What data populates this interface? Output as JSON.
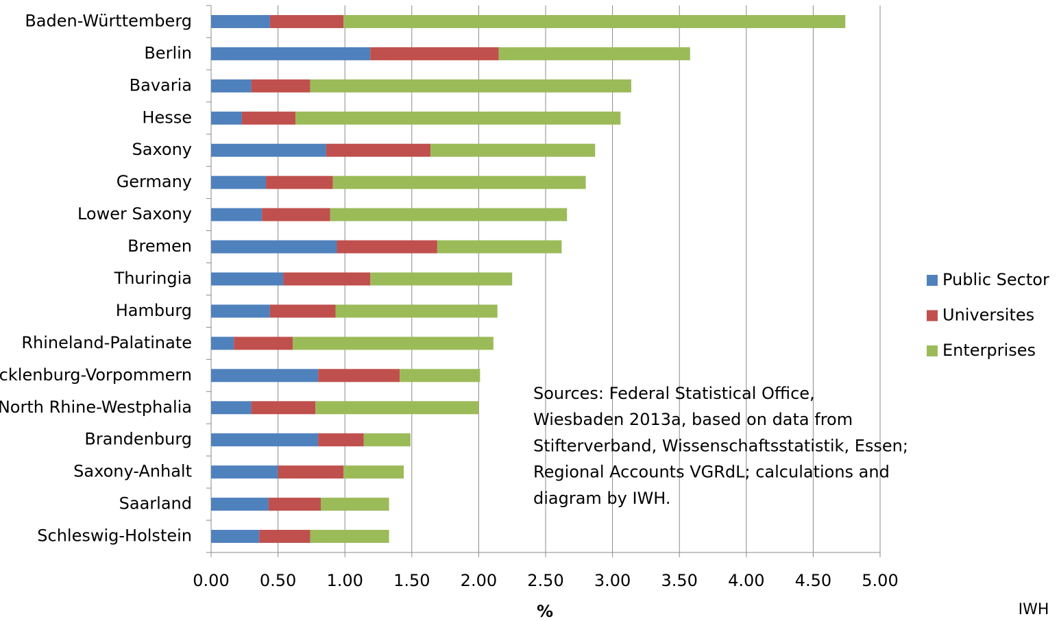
{
  "chart_data": {
    "type": "stacked-bar-horizontal",
    "categories": [
      "Baden-Württemberg",
      "Berlin",
      "Bavaria",
      "Hesse",
      "Saxony",
      "Germany",
      "Lower Saxony",
      "Bremen",
      "Thuringia",
      "Hamburg",
      "Rhineland-Palatinate",
      "Mecklenburg-Vorpommern",
      "North Rhine-Westphalia",
      "Brandenburg",
      "Saxony-Anhalt",
      "Saarland",
      "Schleswig-Holstein"
    ],
    "series": [
      {
        "name": "Public Sector",
        "color": "#4f81bd",
        "values": [
          0.44,
          1.19,
          0.3,
          0.23,
          0.86,
          0.41,
          0.38,
          0.94,
          0.54,
          0.44,
          0.17,
          0.8,
          0.3,
          0.8,
          0.5,
          0.43,
          0.36
        ]
      },
      {
        "name": "Universites",
        "color": "#c0504d",
        "values": [
          0.55,
          0.96,
          0.44,
          0.4,
          0.78,
          0.5,
          0.51,
          0.75,
          0.65,
          0.49,
          0.44,
          0.61,
          0.48,
          0.34,
          0.49,
          0.39,
          0.38
        ]
      },
      {
        "name": "Enterprises",
        "color": "#9bbb59",
        "values": [
          3.75,
          1.43,
          2.4,
          2.43,
          1.23,
          1.89,
          1.77,
          0.93,
          1.06,
          1.21,
          1.5,
          0.6,
          1.22,
          0.35,
          0.45,
          0.51,
          0.59
        ]
      }
    ],
    "xlim": [
      0,
      5
    ],
    "xticks": [
      {
        "value": 0,
        "label": "0.00"
      },
      {
        "value": 0.5,
        "label": "0.50"
      },
      {
        "value": 1,
        "label": "1.00"
      },
      {
        "value": 1.5,
        "label": "1.50"
      },
      {
        "value": 2,
        "label": "2.00"
      },
      {
        "value": 2.5,
        "label": "2.50"
      },
      {
        "value": 3,
        "label": "3.00"
      },
      {
        "value": 3.5,
        "label": "3.50"
      },
      {
        "value": 4,
        "label": "4.00"
      },
      {
        "value": 4.5,
        "label": "4.50"
      },
      {
        "value": 5,
        "label": "5.00"
      }
    ],
    "x_label": "%",
    "grid": true,
    "legend": "right",
    "annotation": [
      "Sources:  Federal Statistical Office,",
      "Wiesbaden 2013a, based on data from",
      "Stifterverband, Wissenschaftsstatistik, Essen;",
      "Regional Accounts VGRdL; calculations and",
      "diagram by IWH."
    ],
    "credit": "IWH"
  }
}
